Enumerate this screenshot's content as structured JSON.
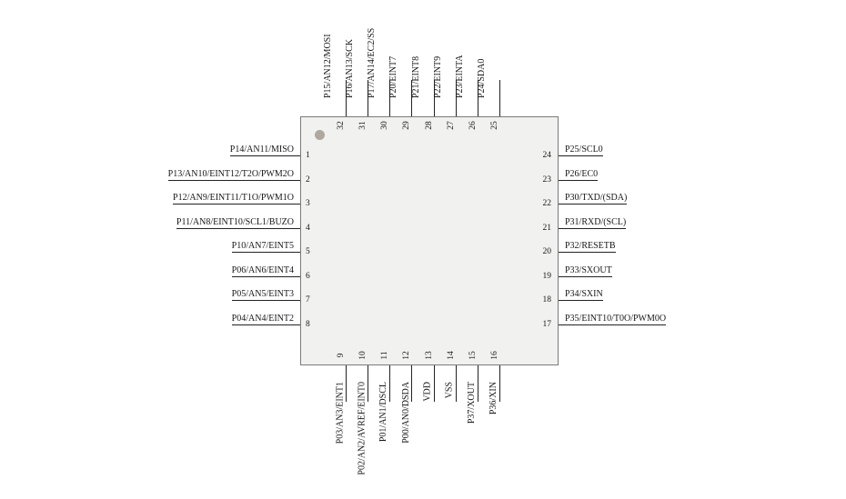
{
  "diagram": {
    "type": "mcu-pinout",
    "package_pin_count": 32,
    "chip": {
      "body_color": "#f1f1ef",
      "border_color": "#7a7a7a",
      "pin1_marker_color": "#aea89e",
      "pin_line_color": "#222222",
      "text_color": "#171717"
    },
    "pins": {
      "left": [
        {
          "number": "1",
          "label": "P14/AN11/MISO"
        },
        {
          "number": "2",
          "label": "P13/AN10/EINT12/T2O/PWM2O"
        },
        {
          "number": "3",
          "label": "P12/AN9/EINT11/T1O/PWM1O"
        },
        {
          "number": "4",
          "label": "P11/AN8/EINT10/SCL1/BUZO"
        },
        {
          "number": "5",
          "label": "P10/AN7/EINT5"
        },
        {
          "number": "6",
          "label": "P06/AN6/EINT4"
        },
        {
          "number": "7",
          "label": "P05/AN5/EINT3"
        },
        {
          "number": "8",
          "label": "P04/AN4/EINT2"
        }
      ],
      "bottom": [
        {
          "number": "9",
          "label": "P03/AN3/EINT1"
        },
        {
          "number": "10",
          "label": "P02/AN2/AVREF/EINT0"
        },
        {
          "number": "11",
          "label": "P01/AN1/DSCL"
        },
        {
          "number": "12",
          "label": "P00/AN0/DSDA"
        },
        {
          "number": "13",
          "label": "VDD"
        },
        {
          "number": "14",
          "label": "VSS"
        },
        {
          "number": "15",
          "label": "P37/XOUT"
        },
        {
          "number": "16",
          "label": "P36/XIN"
        }
      ],
      "right": [
        {
          "number": "24",
          "label": "P25/SCL0"
        },
        {
          "number": "23",
          "label": "P26/EC0"
        },
        {
          "number": "22",
          "label": "P30/TXD/(SDA)"
        },
        {
          "number": "21",
          "label": "P31/RXD/(SCL)"
        },
        {
          "number": "20",
          "label": "P32/RESETB"
        },
        {
          "number": "19",
          "label": "P33/SXOUT"
        },
        {
          "number": "18",
          "label": "P34/SXIN"
        },
        {
          "number": "17",
          "label": "P35/EINT10/T0O/PWM0O"
        }
      ],
      "top": [
        {
          "number": "32",
          "label": "P15/AN12/MOSI"
        },
        {
          "number": "31",
          "label": "P16/AN13/SCK"
        },
        {
          "number": "30",
          "label": "P17/AN14/EC2/SS"
        },
        {
          "number": "29",
          "label": "P20/EINT7"
        },
        {
          "number": "28",
          "label": "P21/EINT8"
        },
        {
          "number": "27",
          "label": "P22/EINT9"
        },
        {
          "number": "26",
          "label": "P23/EINTA"
        },
        {
          "number": "25",
          "label": "P24/SDA0"
        }
      ]
    }
  }
}
